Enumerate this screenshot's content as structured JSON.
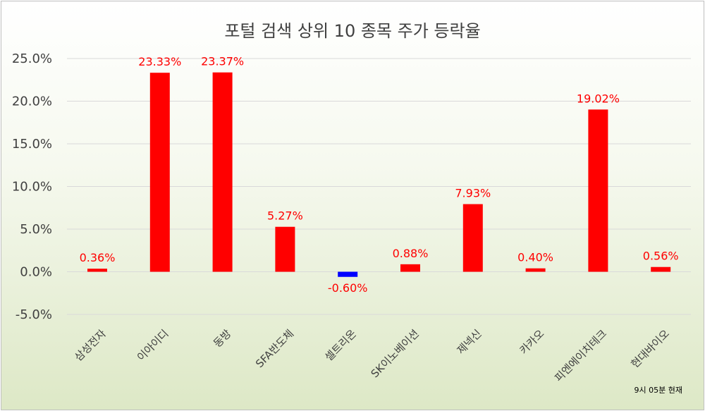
{
  "chart_data": {
    "type": "bar",
    "title": "포털 검색 상위 10 종목 주가 등락율",
    "categories": [
      "삼성전자",
      "이아이디",
      "동방",
      "SFA반도체",
      "셀트리온",
      "SK이노베이션",
      "제넥신",
      "카카오",
      "피엔에이치테크",
      "현대바이오"
    ],
    "values": [
      0.36,
      23.33,
      23.37,
      5.27,
      -0.6,
      0.88,
      7.93,
      0.4,
      19.02,
      0.56
    ],
    "data_labels": [
      "0.36%",
      "23.33%",
      "23.37%",
      "5.27%",
      "-0.60%",
      "0.88%",
      "7.93%",
      "0.40%",
      "19.02%",
      "0.56%"
    ],
    "yticks": [
      25,
      20,
      15,
      10,
      5,
      0,
      -5
    ],
    "ytick_labels": [
      "25.0%",
      "20.0%",
      "15.0%",
      "10.0%",
      "5.0%",
      "0.0%",
      "-5.0%"
    ],
    "ylim": [
      -5,
      25
    ],
    "grid": true,
    "colors": {
      "positive": "#ff0000",
      "negative": "#0000ff",
      "label": "#ff0000"
    }
  },
  "footnote": "9시 05분 현재"
}
